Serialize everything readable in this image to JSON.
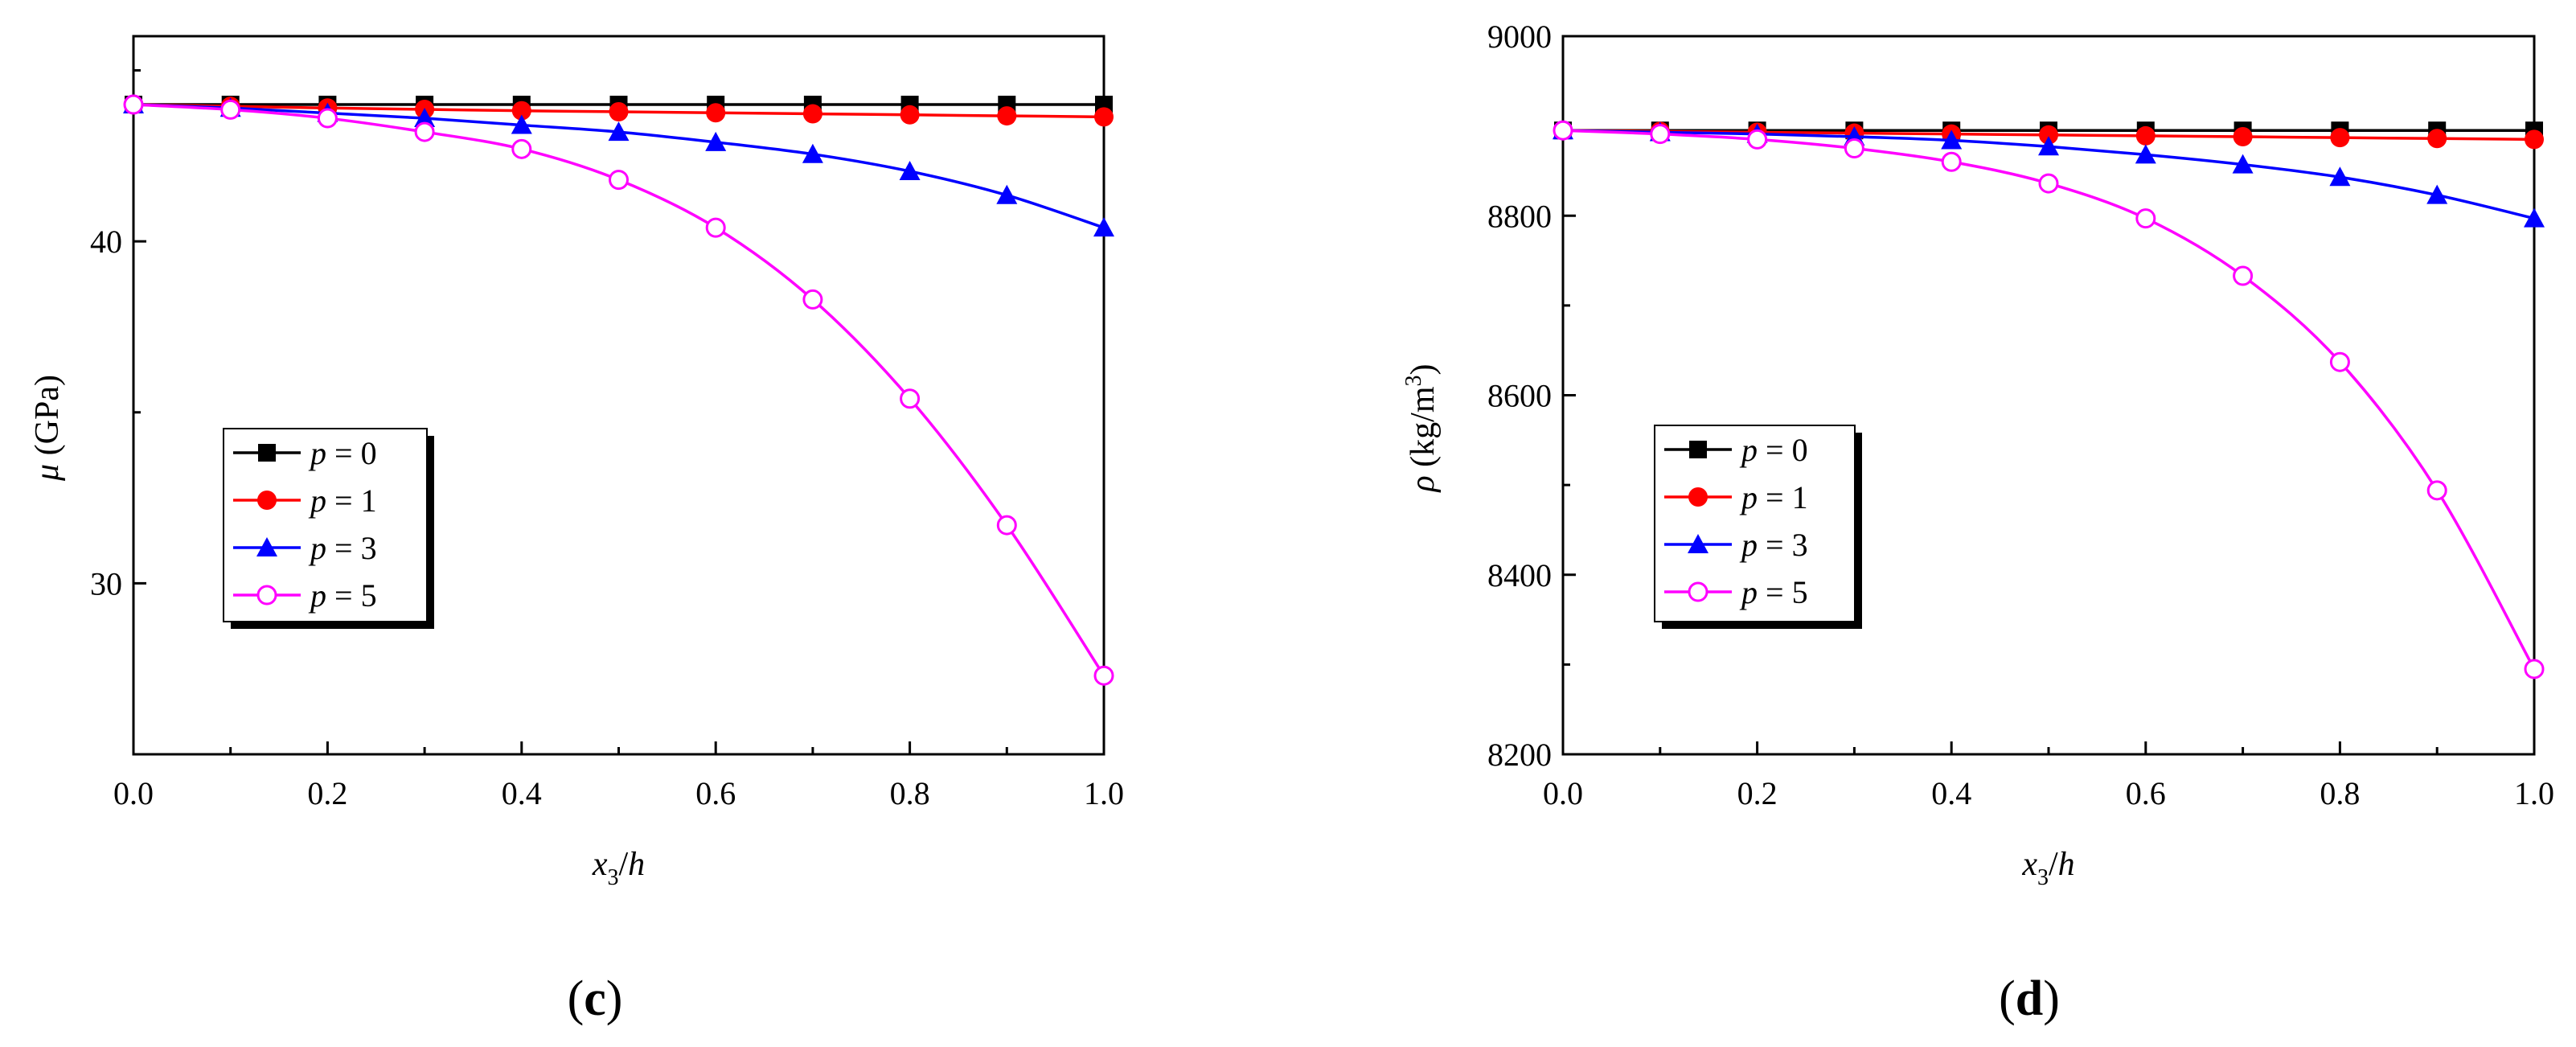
{
  "chart_data": [
    {
      "type": "line",
      "panel_label": {
        "open": "(",
        "letter": "c",
        "close": ")"
      },
      "ylabel": {
        "symbol": "μ",
        "unit": " (GPa)"
      },
      "xlabel": {
        "var": "x",
        "sub": "3",
        "div": "/",
        "h": "h"
      },
      "xlim": [
        0,
        1.0
      ],
      "ylim": [
        25,
        46
      ],
      "xticks": [
        0,
        0.2,
        0.4,
        0.6,
        0.8,
        1.0
      ],
      "xtick_labels": [
        "0.0",
        "0.2",
        "0.4",
        "0.6",
        "0.8",
        "1.0"
      ],
      "yticks": [
        30,
        40
      ],
      "ytick_labels": [
        "30",
        "40"
      ],
      "x": [
        0,
        0.1,
        0.2,
        0.3,
        0.4,
        0.5,
        0.6,
        0.7,
        0.8,
        0.9,
        1.0
      ],
      "legend_position": "lower-left",
      "series": [
        {
          "name": "p = 0",
          "p": "0",
          "color": "#000000",
          "marker": "square",
          "values": [
            44.0,
            44.0,
            44.0,
            44.0,
            44.0,
            44.0,
            44.0,
            44.0,
            44.0,
            44.0,
            44.0
          ]
        },
        {
          "name": "p = 1",
          "p": "1",
          "color": "#ff0000",
          "marker": "circle",
          "values": [
            44.0,
            43.95,
            43.9,
            43.86,
            43.82,
            43.79,
            43.76,
            43.73,
            43.7,
            43.67,
            43.64
          ]
        },
        {
          "name": "p = 3",
          "p": "3",
          "color": "#0000ff",
          "marker": "triangle",
          "values": [
            44.0,
            43.9,
            43.75,
            43.6,
            43.4,
            43.2,
            42.9,
            42.55,
            42.05,
            41.35,
            40.4
          ]
        },
        {
          "name": "p = 5",
          "p": "5",
          "color": "#ff00ff",
          "marker": "open-circle",
          "values": [
            44.0,
            43.85,
            43.6,
            43.2,
            42.7,
            41.8,
            40.4,
            38.3,
            35.4,
            31.7,
            27.3
          ]
        }
      ]
    },
    {
      "type": "line",
      "panel_label": {
        "open": "(",
        "letter": "d",
        "close": ")"
      },
      "ylabel": {
        "symbol": "ρ",
        "unit": " (kg/m",
        "sup": "3",
        "close": ")"
      },
      "xlabel": {
        "var": "x",
        "sub": "3",
        "div": "/",
        "h": "h"
      },
      "xlim": [
        0,
        1.0
      ],
      "ylim": [
        8200,
        9000
      ],
      "xticks": [
        0,
        0.2,
        0.4,
        0.6,
        0.8,
        1.0
      ],
      "xtick_labels": [
        "0.0",
        "0.2",
        "0.4",
        "0.6",
        "0.8",
        "1.0"
      ],
      "yticks": [
        8200,
        8400,
        8600,
        8800,
        9000
      ],
      "ytick_labels": [
        "8200",
        "8400",
        "8600",
        "8800",
        "9000"
      ],
      "x": [
        0,
        0.1,
        0.2,
        0.3,
        0.4,
        0.5,
        0.6,
        0.7,
        0.8,
        0.9,
        1.0
      ],
      "legend_position": "lower-left",
      "series": [
        {
          "name": "p = 0",
          "p": "0",
          "color": "#000000",
          "marker": "square",
          "values": [
            8895,
            8895,
            8895,
            8895,
            8895,
            8895,
            8895,
            8895,
            8895,
            8895,
            8895
          ]
        },
        {
          "name": "p = 1",
          "p": "1",
          "color": "#ff0000",
          "marker": "circle",
          "values": [
            8895,
            8894,
            8893,
            8892,
            8891,
            8890,
            8889,
            8888,
            8887,
            8886,
            8885
          ]
        },
        {
          "name": "p = 3",
          "p": "3",
          "color": "#0000ff",
          "marker": "triangle",
          "values": [
            8895,
            8893,
            8891,
            8888,
            8884,
            8877,
            8868,
            8857,
            8843,
            8823,
            8797
          ]
        },
        {
          "name": "p = 5",
          "p": "5",
          "color": "#ff00ff",
          "marker": "open-circle",
          "values": [
            8895,
            8891,
            8885,
            8875,
            8860,
            8836,
            8797,
            8733,
            8637,
            8494,
            8295
          ]
        }
      ]
    }
  ]
}
